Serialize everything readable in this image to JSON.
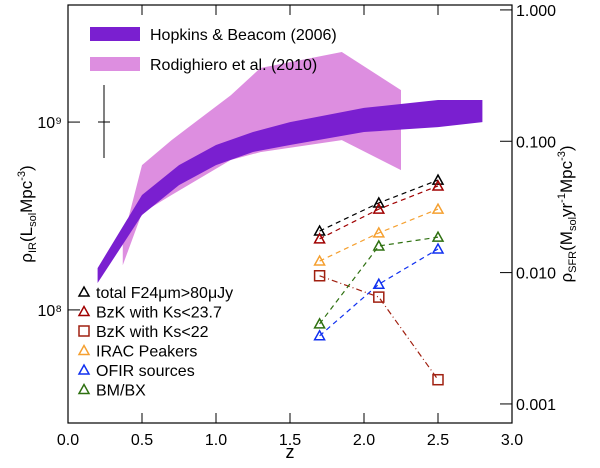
{
  "chart_data": {
    "type": "line",
    "xlabel": "z",
    "ylabel": [
      "ρ",
      "IR",
      "(L",
      "sol",
      "Mpc",
      "-3",
      ")"
    ],
    "y2label": [
      "ρ",
      "SFR",
      "(M",
      "sol",
      "yr",
      "-1",
      "Mpc",
      "-3",
      ")"
    ],
    "xlim": [
      0,
      3
    ],
    "xticks": [
      {
        "value": 0,
        "label": "0.0"
      },
      0.5,
      {
        "value": 1,
        "label": "1.0"
      },
      1.5,
      {
        "value": 2,
        "label": "2.0"
      },
      2.5,
      {
        "value": 3,
        "label": "3.0"
      }
    ],
    "ylim": [
      25000000,
      4200000000
    ],
    "yscale": "log",
    "yticks": [
      {
        "value": 100000000,
        "label": "10⁸"
      },
      {
        "value": 1000000000,
        "label": "10⁹"
      }
    ],
    "y2lim": [
      0.000716,
      1.09
    ],
    "y2scale": "log",
    "y2ticks": [
      {
        "value": 1,
        "label": "1.000"
      },
      {
        "value": 0.1,
        "label": "0.100"
      },
      {
        "value": 0.01,
        "label": "0.010"
      },
      {
        "value": 0.001,
        "label": "0.001"
      }
    ],
    "bands": [
      {
        "name": "Hopkins & Beacom (2006)",
        "color": "#7a1fd0",
        "x": [
          0.2,
          0.5,
          0.75,
          1.0,
          1.25,
          1.5,
          2.0,
          2.5,
          2.8
        ],
        "lower": [
          139000000,
          320000000,
          462000000,
          590000000,
          693000000,
          755000000,
          885000000,
          940000000,
          1000000000
        ],
        "upper": [
          167000000,
          409000000,
          590000000,
          755000000,
          885000000,
          1000000000,
          1190000000,
          1310000000,
          1310000000
        ]
      },
      {
        "name": "Rodighiero et al. (2010)",
        "color": "#dd8ee0",
        "x": [
          0.37,
          0.5,
          0.7,
          1.1,
          1.3,
          1.85,
          2.25
        ],
        "lower": [
          173000000,
          328000000,
          409000000,
          628000000,
          692000000,
          802000000,
          555000000
        ],
        "upper": [
          236000000,
          590000000,
          802000000,
          1390000000,
          1940000000,
          2360000000,
          1480000000
        ]
      }
    ],
    "series": [
      {
        "name": "total F24μm>80μJy",
        "color": "#000000",
        "marker": "triangle",
        "dash": "dash",
        "x": [
          1.7,
          2.1,
          2.5
        ],
        "values": [
          263000000,
          371000000,
          491000000
        ]
      },
      {
        "name": "BzK with Ks<23.7",
        "color": "#a00000",
        "marker": "triangle",
        "dash": "dash",
        "x": [
          1.7,
          2.1,
          2.5
        ],
        "values": [
          239000000,
          344000000,
          457000000
        ]
      },
      {
        "name": "BzK with Ks<22",
        "color": "#a02010",
        "marker": "square",
        "dash": "dashdot",
        "x": [
          1.7,
          2.1,
          2.5
        ],
        "values": [
          152000000,
          117000000,
          42500000
        ]
      },
      {
        "name": "IRAC Peakers",
        "color": "#f5a030",
        "marker": "triangle",
        "dash": "dash",
        "x": [
          1.7,
          2.1,
          2.5
        ],
        "values": [
          182000000,
          257000000,
          344000000
        ]
      },
      {
        "name": "OFIR sources",
        "color": "#1030f0",
        "marker": "triangle",
        "dash": "dash",
        "x": [
          1.7,
          2.1,
          2.5
        ],
        "values": [
          72800000,
          137000000,
          211000000
        ]
      },
      {
        "name": "BM/BX",
        "color": "#2e7010",
        "marker": "triangle",
        "dash": "dash",
        "x": [
          1.7,
          2.1,
          2.5
        ],
        "values": [
          84300000,
          219000000,
          244000000
        ]
      }
    ]
  }
}
